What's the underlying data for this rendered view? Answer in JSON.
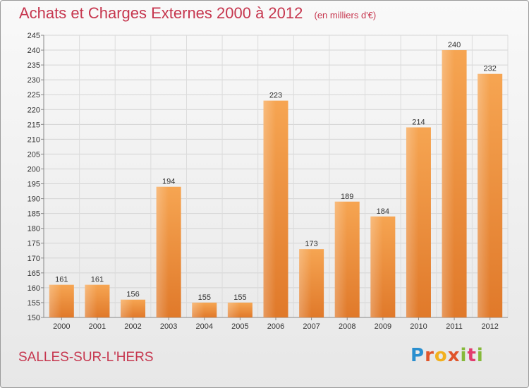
{
  "chart_data": {
    "type": "bar",
    "title": "Achats et Charges Externes 2000 à 2012",
    "unit": "(en milliers d'€)",
    "categories": [
      "2000",
      "2001",
      "2002",
      "2003",
      "2004",
      "2005",
      "2006",
      "2007",
      "2008",
      "2009",
      "2010",
      "2011",
      "2012"
    ],
    "values": [
      161,
      161,
      156,
      194,
      155,
      155,
      223,
      173,
      189,
      184,
      214,
      240,
      232
    ],
    "ylim": [
      150,
      245
    ],
    "yticks": [
      150,
      155,
      160,
      165,
      170,
      175,
      180,
      185,
      190,
      195,
      200,
      205,
      210,
      215,
      220,
      225,
      230,
      235,
      240,
      245
    ],
    "grid": true,
    "bar_color": "#f0923e"
  },
  "footer": {
    "town": "SALLES-SUR-L'HERS",
    "logo_parts": [
      "P",
      "r",
      "o",
      "x",
      "i",
      "t",
      "i"
    ]
  }
}
